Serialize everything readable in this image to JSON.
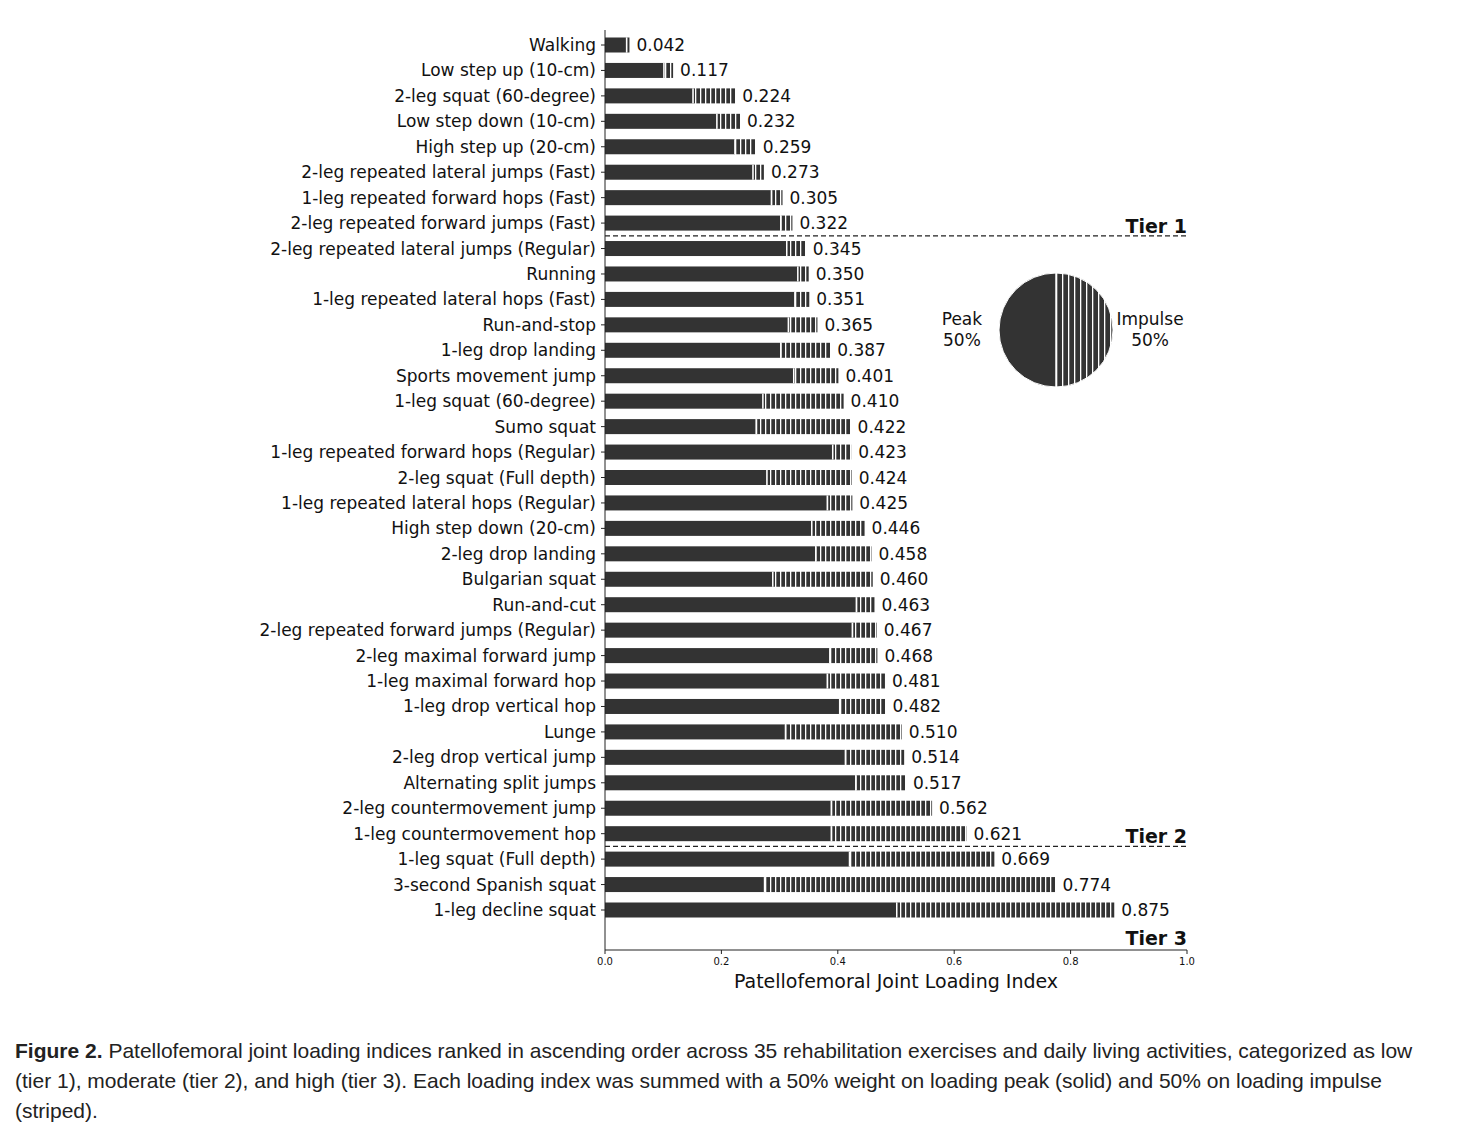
{
  "chart_data": [
    {
      "type": "bar",
      "orientation": "horizontal",
      "stacked": true,
      "data_labels": true,
      "grid": false,
      "title": "Figure 2.",
      "subtitle": "Patellofemoral joint loading indices ranked in ascending order across 35 rehabilitation exercises and daily living activities, categorized as low (tier 1), moderate (tier 2), and high (tier 3). Each loading index was summed with a 50% weight on loading peak (solid) and 50% on loading impulse (striped).",
      "x_label": "Patellofemoral Joint Loading Index",
      "xlim": [
        0,
        1
      ],
      "xticks": [
        {
          "value": 0,
          "label": "0.0"
        },
        0.2,
        0.4,
        0.6,
        0.8,
        {
          "value": 1,
          "label": "1.0"
        }
      ],
      "categories": [
        "Walking",
        "Low step up (10-cm)",
        "2-leg squat (60-degree)",
        "Low step down (10-cm)",
        "High step up (20-cm)",
        "2-leg repeated lateral jumps (Fast)",
        "1-leg repeated forward hops (Fast)",
        "2-leg repeated forward jumps (Fast)",
        "2-leg repeated lateral jumps (Regular)",
        "Running",
        "1-leg repeated lateral hops (Fast)",
        "Run-and-stop",
        "1-leg drop landing",
        "Sports movement jump",
        "1-leg squat (60-degree)",
        "Sumo squat",
        "1-leg repeated forward hops (Regular)",
        "2-leg squat (Full depth)",
        "1-leg repeated lateral hops (Regular)",
        "High step down (20-cm)",
        "2-leg drop landing",
        "Bulgarian squat",
        "Run-and-cut",
        "2-leg repeated forward jumps (Regular)",
        "2-leg maximal forward jump",
        "1-leg maximal forward hop",
        "1-leg drop vertical hop",
        "Lunge",
        "2-leg drop vertical jump",
        "Alternating split jumps",
        "2-leg countermovement jump",
        "1-leg countermovement hop",
        "1-leg squat (Full depth)",
        "3-second Spanish squat",
        "1-leg decline squat"
      ],
      "series": [
        {
          "name": "Peak",
          "color": "#333333",
          "values": [
            0.036,
            0.1,
            0.15,
            0.191,
            0.222,
            0.253,
            0.285,
            0.301,
            0.311,
            0.33,
            0.325,
            0.314,
            0.301,
            0.323,
            0.27,
            0.259,
            0.39,
            0.277,
            0.381,
            0.354,
            0.361,
            0.287,
            0.431,
            0.424,
            0.385,
            0.381,
            0.402,
            0.309,
            0.412,
            0.43,
            0.388,
            0.388,
            0.419,
            0.273,
            0.5
          ]
        },
        {
          "name": "Impulse",
          "color": "#333333",
          "values": [
            0.006,
            0.017,
            0.074,
            0.041,
            0.037,
            0.02,
            0.02,
            0.021,
            0.034,
            0.02,
            0.026,
            0.051,
            0.086,
            0.078,
            0.14,
            0.163,
            0.033,
            0.147,
            0.044,
            0.092,
            0.097,
            0.173,
            0.032,
            0.043,
            0.083,
            0.1,
            0.08,
            0.201,
            0.102,
            0.087,
            0.174,
            0.233,
            0.25,
            0.501,
            0.375
          ]
        }
      ],
      "totals": [
        0.042,
        0.117,
        0.224,
        0.232,
        0.259,
        0.273,
        0.305,
        0.322,
        0.345,
        0.35,
        0.351,
        0.365,
        0.387,
        0.401,
        0.41,
        0.422,
        0.423,
        0.424,
        0.425,
        0.446,
        0.458,
        0.46,
        0.463,
        0.467,
        0.468,
        0.481,
        0.482,
        0.51,
        0.514,
        0.517,
        0.562,
        0.621,
        0.669,
        0.774,
        0.875
      ],
      "value_labels": [
        "0.042",
        "0.117",
        "0.224",
        "0.232",
        "0.259",
        "0.273",
        "0.305",
        "0.322",
        "0.345",
        "0.350",
        "0.351",
        "0.365",
        "0.387",
        "0.401",
        "0.410",
        "0.422",
        "0.423",
        "0.424",
        "0.425",
        "0.446",
        "0.458",
        "0.460",
        "0.463",
        "0.467",
        "0.468",
        "0.481",
        "0.482",
        "0.510",
        "0.514",
        "0.517",
        "0.562",
        "0.621",
        "0.669",
        "0.774",
        "0.875"
      ],
      "tiers": [
        {
          "label": "Tier 1",
          "last": "2-leg repeated forward jumps (Fast)"
        },
        {
          "label": "Tier 2",
          "last": "1-leg countermovement hop"
        },
        {
          "label": "Tier 3",
          "last": "1-leg decline squat"
        }
      ]
    },
    {
      "type": "pie",
      "categories": [
        "Peak",
        "Impulse"
      ],
      "values": [
        50,
        50
      ],
      "value_labels": [
        "50%",
        "50%"
      ],
      "colors": [
        "#333333",
        "#333333"
      ]
    }
  ]
}
